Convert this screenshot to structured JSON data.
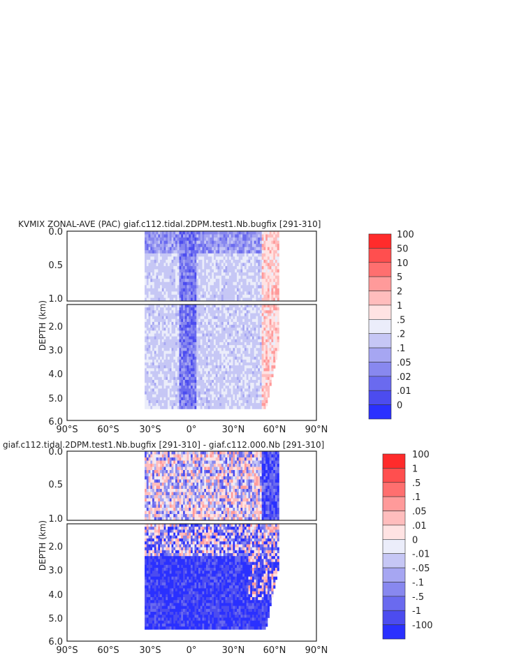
{
  "chart_data": [
    {
      "type": "heatmap",
      "title": "KVMIX ZONAL-AVE (PAC) giaf.c112.tidal.2DPM.test1.Nb.bugfix [291-310]",
      "ylabel": "DEPTH (km)",
      "xlabel": "",
      "x_ticks": [
        "90°S",
        "60°S",
        "30°S",
        "0°",
        "30°N",
        "60°N",
        "90°N"
      ],
      "y_ticks_upper": [
        "0.0",
        "0.5",
        "1.0"
      ],
      "y_ticks_lower": [
        "2.0",
        "3.0",
        "4.0",
        "5.0",
        "6.0"
      ],
      "xlim": [
        -90,
        90
      ],
      "ylim": [
        6.0,
        0.0
      ],
      "y_axis_break_km": 1.0,
      "data_extent": {
        "lat_min": -34,
        "lat_max": 63,
        "depth_max_km": 5.5
      },
      "colorbar": {
        "labels": [
          "100",
          "50",
          "10",
          "5",
          "2",
          "1",
          ".5",
          ".2",
          ".1",
          ".05",
          ".02",
          ".01",
          "0"
        ],
        "colors": [
          "#ff2b2b",
          "#ff4f4f",
          "#ff6f6f",
          "#ff9a9a",
          "#ffbdbd",
          "#ffe3e3",
          "#ebedfa",
          "#c6c7f5",
          "#a6a6f2",
          "#8888ef",
          "#6a6aef",
          "#4c4cef",
          "#2a30ff"
        ]
      }
    },
    {
      "type": "heatmap",
      "title": "giaf.c112.tidal.2DPM.test1.Nb.bugfix [291-310] - giaf.c112.000.Nb [291-310]",
      "ylabel": "DEPTH (km)",
      "xlabel": "",
      "x_ticks": [
        "90°S",
        "60°S",
        "30°S",
        "0°",
        "30°N",
        "60°N",
        "90°N"
      ],
      "y_ticks_upper": [
        "0.0",
        "0.5",
        "1.0"
      ],
      "y_ticks_lower": [
        "2.0",
        "3.0",
        "4.0",
        "5.0",
        "6.0"
      ],
      "xlim": [
        -90,
        90
      ],
      "ylim": [
        6.0,
        0.0
      ],
      "y_axis_break_km": 1.0,
      "data_extent": {
        "lat_min": -34,
        "lat_max": 63,
        "depth_max_km": 5.5
      },
      "colorbar": {
        "labels": [
          "100",
          "1",
          ".5",
          ".1",
          ".05",
          ".01",
          "0",
          "-.01",
          "-.05",
          "-.1",
          "-.5",
          "-1",
          "-100"
        ],
        "colors": [
          "#ff2b2b",
          "#ff4f4f",
          "#ff6f6f",
          "#ff9a9a",
          "#ffbdbd",
          "#ffe3e3",
          "#ebedfa",
          "#c6c7f5",
          "#a6a6f2",
          "#8888ef",
          "#6a6aef",
          "#4c4cef",
          "#2a30ff"
        ]
      }
    }
  ]
}
